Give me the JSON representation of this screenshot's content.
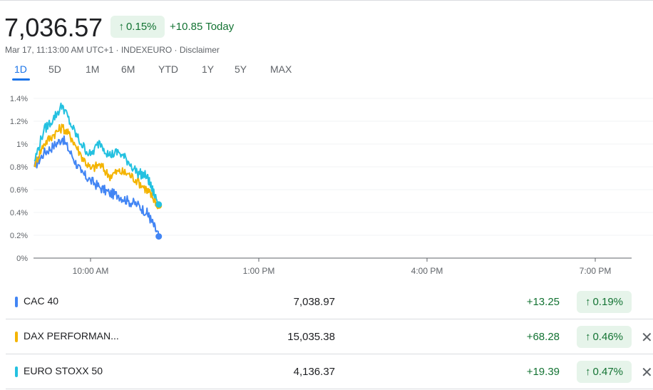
{
  "header": {
    "price": "7,036.57",
    "change_pct": "0.15%",
    "change_today": "+10.85 Today",
    "meta": "Mar 17, 11:13:00 AM UTC+1 · INDEXEURO · Disclaimer"
  },
  "ranges": [
    "1D",
    "5D",
    "1M",
    "6M",
    "YTD",
    "1Y",
    "5Y",
    "MAX"
  ],
  "active_range": "1D",
  "colors": {
    "positive": "#137333",
    "positive_bg": "#e6f4ea",
    "accent": "#1a73e8",
    "cac": "#4285f4",
    "dax": "#f4b400",
    "stoxx": "#24c1e0"
  },
  "chart_data": {
    "type": "line",
    "title": "",
    "xlabel": "",
    "ylabel": "",
    "x_ticks": [
      "10:00 AM",
      "1:00 PM",
      "4:00 PM",
      "7:00 PM"
    ],
    "y_ticks": [
      "0%",
      "0.2%",
      "0.4%",
      "0.6%",
      "0.8%",
      "1%",
      "1.2%",
      "1.4%"
    ],
    "ylim": [
      0,
      1.4
    ],
    "x_domain": [
      "9:00 AM",
      "8:00 PM"
    ],
    "grid": true,
    "series": [
      {
        "name": "CAC 40",
        "color": "#4285f4",
        "x": [
          "9:00",
          "9:10",
          "9:20",
          "9:30",
          "9:40",
          "9:50",
          "10:00",
          "10:10",
          "10:20",
          "10:30",
          "10:40",
          "10:50",
          "11:00",
          "11:05",
          "11:13"
        ],
        "values": [
          0.8,
          0.92,
          0.98,
          1.05,
          0.9,
          0.75,
          0.68,
          0.62,
          0.57,
          0.55,
          0.5,
          0.47,
          0.4,
          0.33,
          0.19
        ]
      },
      {
        "name": "DAX PERFORMAN...",
        "color": "#f4b400",
        "x": [
          "9:00",
          "9:10",
          "9:20",
          "9:30",
          "9:40",
          "9:50",
          "10:00",
          "10:10",
          "10:20",
          "10:30",
          "10:40",
          "10:50",
          "11:00",
          "11:05",
          "11:13"
        ],
        "values": [
          0.82,
          1.0,
          1.08,
          1.15,
          1.05,
          0.9,
          0.78,
          0.82,
          0.72,
          0.76,
          0.74,
          0.68,
          0.6,
          0.55,
          0.46
        ]
      },
      {
        "name": "EURO STOXX 50",
        "color": "#24c1e0",
        "x": [
          "9:00",
          "9:10",
          "9:20",
          "9:30",
          "9:40",
          "9:50",
          "10:00",
          "10:10",
          "10:20",
          "10:30",
          "10:40",
          "10:50",
          "11:00",
          "11:05",
          "11:13"
        ],
        "values": [
          0.85,
          1.12,
          1.22,
          1.34,
          1.15,
          1.0,
          0.9,
          1.02,
          0.9,
          0.93,
          0.85,
          0.75,
          0.72,
          0.62,
          0.47
        ]
      }
    ]
  },
  "comparisons": [
    {
      "name": "CAC 40",
      "value": "7,038.97",
      "change": "+13.25",
      "pct": "0.19%",
      "color": "#4285f4",
      "removable": false
    },
    {
      "name": "DAX PERFORMAN...",
      "value": "15,035.38",
      "change": "+68.28",
      "pct": "0.46%",
      "color": "#f4b400",
      "removable": true
    },
    {
      "name": "EURO STOXX 50",
      "value": "4,136.37",
      "change": "+19.39",
      "pct": "0.47%",
      "color": "#24c1e0",
      "removable": true
    }
  ],
  "icons": {
    "up": "↑",
    "close": "✕"
  }
}
